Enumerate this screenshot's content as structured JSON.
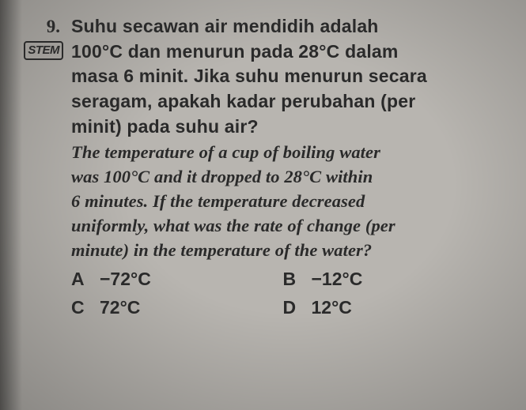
{
  "question": {
    "number": "9.",
    "badge": "STEM",
    "malay_line1": "Suhu secawan air mendidih adalah",
    "malay_line2": "100°C dan menurun pada 28°C dalam",
    "malay_line3": "masa 6 minit. Jika suhu menurun secara",
    "malay_line4": "seragam, apakah kadar perubahan (per",
    "malay_line5": "minit) pada suhu air?",
    "english_line1": "The temperature of a cup of boiling water",
    "english_line2": "was 100°C and it dropped to 28°C within",
    "english_line3": "6 minutes. If the temperature decreased",
    "english_line4": "uniformly, what was the rate of change (per",
    "english_line5": "minute) in the temperature of the water?",
    "options": {
      "A": {
        "letter": "A",
        "value": "−72°C"
      },
      "B": {
        "letter": "B",
        "value": "−12°C"
      },
      "C": {
        "letter": "C",
        "value": "72°C"
      },
      "D": {
        "letter": "D",
        "value": "12°C"
      }
    }
  }
}
